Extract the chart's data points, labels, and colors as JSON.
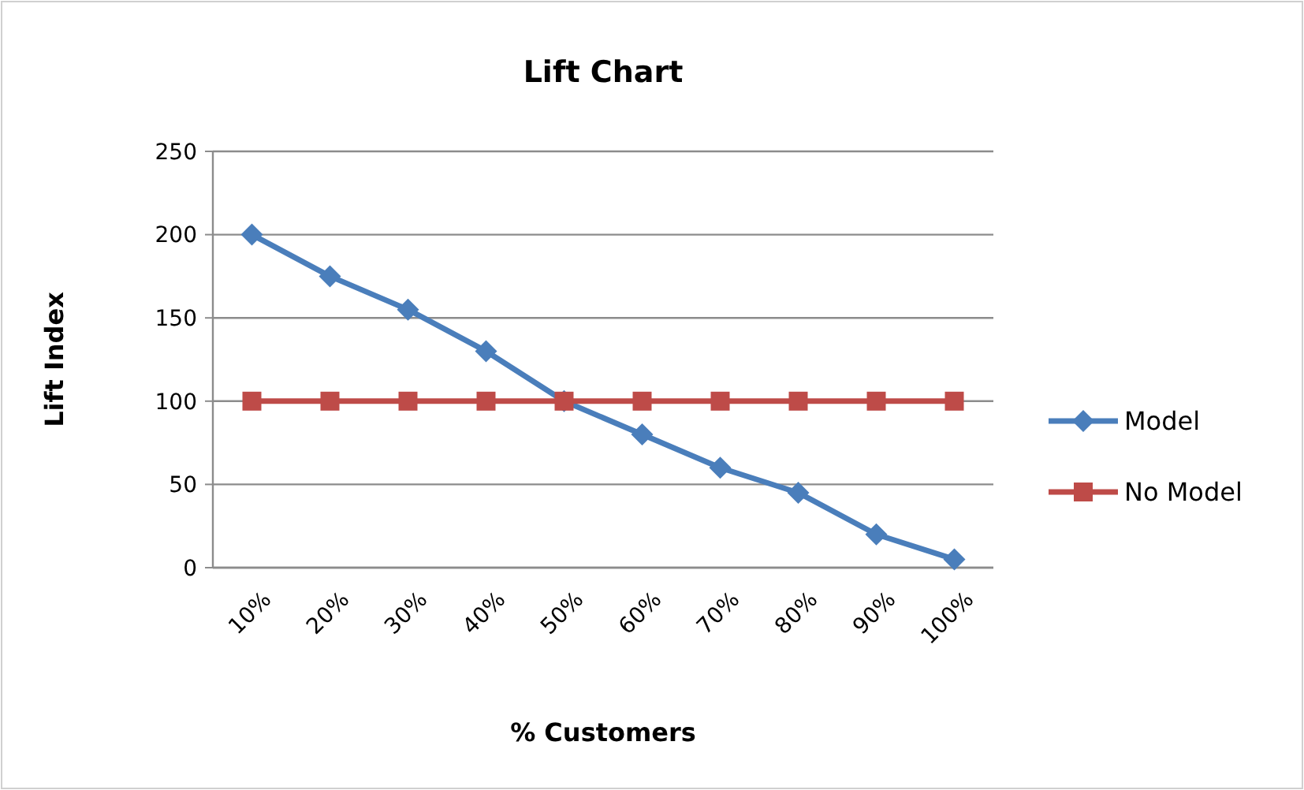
{
  "chart_data": {
    "type": "line",
    "title": "Lift Chart",
    "xlabel": "% Customers",
    "ylabel": "Lift Index",
    "categories": [
      "10%",
      "20%",
      "30%",
      "40%",
      "50%",
      "60%",
      "70%",
      "80%",
      "90%",
      "100%"
    ],
    "series": [
      {
        "name": "Model",
        "color": "#4a7ebb",
        "values": [
          200,
          175,
          155,
          130,
          100,
          80,
          60,
          45,
          20,
          5
        ],
        "marker": "diamond"
      },
      {
        "name": "No Model",
        "color": "#be4b48",
        "values": [
          100,
          100,
          100,
          100,
          100,
          100,
          100,
          100,
          100,
          100
        ],
        "marker": "square"
      }
    ],
    "ylim": [
      0,
      250
    ],
    "yticks": [
      0,
      50,
      100,
      150,
      200,
      250
    ],
    "grid": "y",
    "legend": "right",
    "line_style": "solid"
  }
}
